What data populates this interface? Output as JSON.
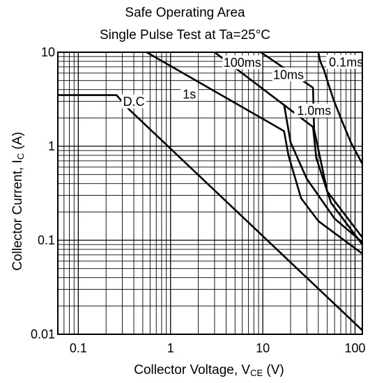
{
  "chart_data": {
    "type": "line",
    "title": "Safe Operating Area",
    "subtitle": "Single Pulse Test at Ta=25°C",
    "xlabel": {
      "main": "Collector Voltage, V",
      "sub": "CE",
      "unit": " (V)"
    },
    "ylabel": {
      "main": "Collector Current, I",
      "sub": "C",
      "unit": " (A)"
    },
    "xscale": "log",
    "yscale": "log",
    "xlim": [
      0.06,
      120
    ],
    "ylim": [
      0.01,
      10
    ],
    "grid": true,
    "x_ticks": [
      {
        "value": 0.1,
        "label": "0.1"
      },
      {
        "value": 1,
        "label": "1"
      },
      {
        "value": 10,
        "label": "10"
      },
      {
        "value": 100,
        "label": "100"
      }
    ],
    "y_ticks": [
      {
        "value": 0.01,
        "label": "0.01"
      },
      {
        "value": 0.1,
        "label": "0.1"
      },
      {
        "value": 1,
        "label": "1"
      },
      {
        "value": 10,
        "label": "10"
      }
    ],
    "series": [
      {
        "name": "D.C",
        "points": [
          [
            0.06,
            3.5
          ],
          [
            0.26,
            3.5
          ],
          [
            0.35,
            2.5
          ],
          [
            120,
            0.011
          ]
        ],
        "label_at": [
          0.4,
          3.0
        ]
      },
      {
        "name": "1s",
        "points": [
          [
            0.55,
            10
          ],
          [
            17,
            1.45
          ],
          [
            19,
            0.8
          ],
          [
            26,
            0.28
          ],
          [
            40,
            0.16
          ],
          [
            120,
            0.072
          ]
        ],
        "label_at": [
          1.6,
          3.6
        ]
      },
      {
        "name": "100ms",
        "points": [
          [
            3,
            10
          ],
          [
            35,
            1.6
          ],
          [
            38,
            0.75
          ],
          [
            55,
            0.25
          ],
          [
            120,
            0.09
          ]
        ],
        "label_at": [
          6.0,
          7.8
        ]
      },
      {
        "name": "10ms",
        "points": [
          [
            9.5,
            10
          ],
          [
            35,
            4.2
          ],
          [
            36,
            1.5
          ],
          [
            50,
            0.33
          ],
          [
            120,
            0.107
          ]
        ],
        "label_at": [
          19,
          5.8
        ]
      },
      {
        "name": "1.0ms",
        "points": [
          [
            17,
            2.8
          ],
          [
            20,
            1.1
          ],
          [
            30,
            0.45
          ],
          [
            60,
            0.17
          ],
          [
            120,
            0.095
          ]
        ],
        "label_at": [
          36,
          2.4
        ]
      },
      {
        "name": "0.1ms",
        "points": [
          [
            40,
            10
          ],
          [
            42,
            8
          ],
          [
            46,
            6.5
          ],
          [
            50,
            5
          ],
          [
            58,
            3.2
          ],
          [
            70,
            2
          ],
          [
            90,
            1.1
          ],
          [
            120,
            0.65
          ]
        ],
        "label_at": [
          80,
          7.9
        ]
      }
    ]
  }
}
